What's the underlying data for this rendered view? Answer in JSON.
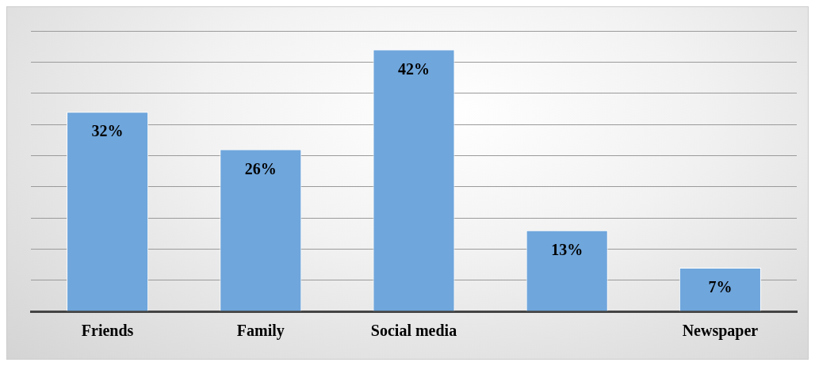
{
  "chart_data": {
    "type": "bar",
    "categories": [
      "Friends",
      "Family",
      "Social media",
      null,
      "Newspaper"
    ],
    "values": [
      32,
      26,
      42,
      13,
      7
    ],
    "value_labels": [
      "32%",
      "26%",
      "42%",
      "13%",
      "7%"
    ],
    "color": "#6fa6dc",
    "ylim": [
      0,
      45
    ],
    "yticks": [
      {
        "value": 0,
        "label": null
      },
      {
        "value": 5,
        "label": null
      },
      {
        "value": 10,
        "label": null
      },
      {
        "value": 15,
        "label": null
      },
      {
        "value": 20,
        "label": null
      },
      {
        "value": 25,
        "label": null
      },
      {
        "value": 30,
        "label": null
      },
      {
        "value": 35,
        "label": null
      },
      {
        "value": 40,
        "label": null
      },
      {
        "value": 45,
        "label": null
      }
    ],
    "grid": "y",
    "legend": false,
    "tick_labels": "x"
  }
}
